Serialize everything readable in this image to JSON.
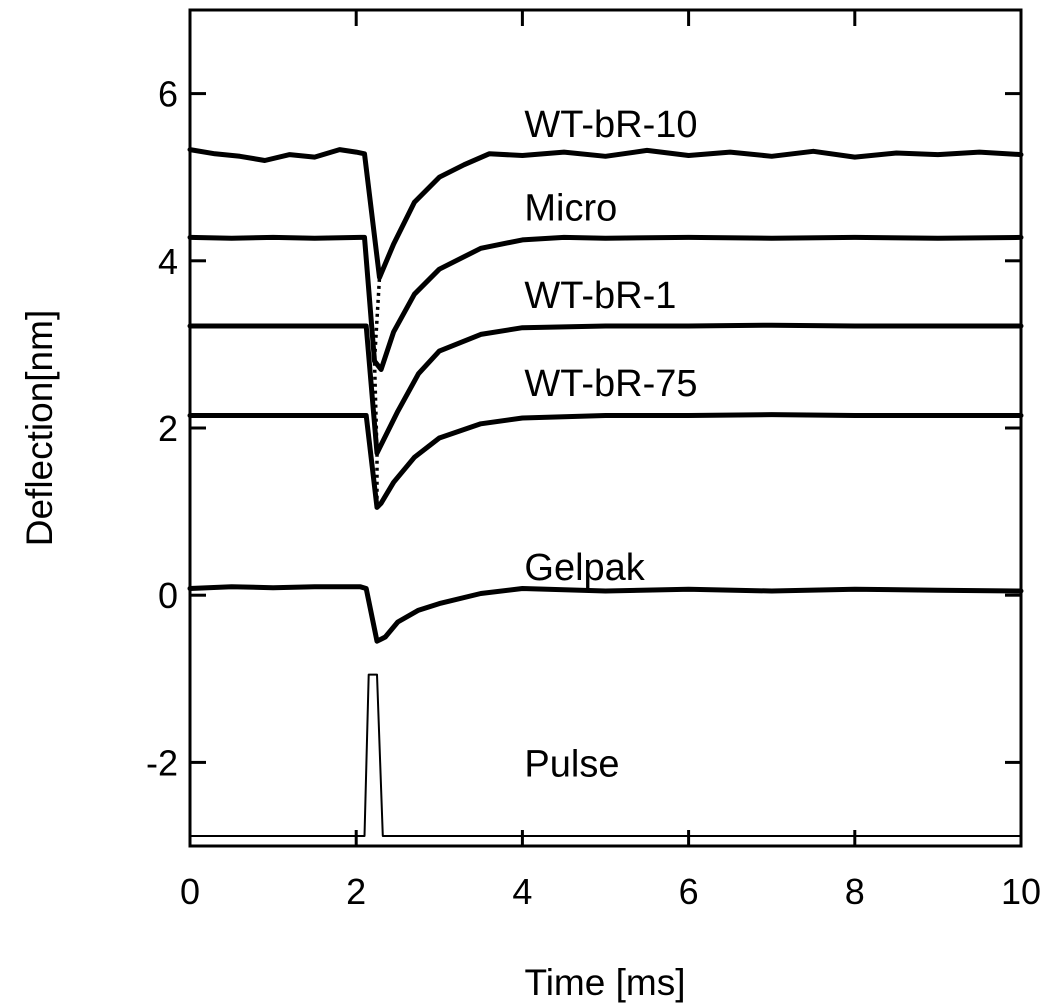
{
  "chart_data": {
    "type": "line",
    "xlabel": "Time [ms]",
    "ylabel": "Deflection[nm]",
    "xlim": [
      0,
      10
    ],
    "ylim": [
      -3.0,
      7.0
    ],
    "xticks": [
      0,
      2,
      4,
      6,
      8,
      10
    ],
    "yticks": [
      -2,
      0,
      2,
      4,
      6
    ],
    "xtick_labels": [
      "0",
      "2",
      "4",
      "6",
      "8",
      "10"
    ],
    "ytick_labels": [
      "-2",
      "0",
      "2",
      "4",
      "6"
    ],
    "grid": false,
    "legend": "none",
    "line_color": "#000000",
    "series": [
      {
        "name": "WT-bR-10",
        "label_at": [
          4.0,
          5.65
        ],
        "points": [
          [
            0,
            5.33
          ],
          [
            0.3,
            5.28
          ],
          [
            0.6,
            5.25
          ],
          [
            0.9,
            5.2
          ],
          [
            1.2,
            5.27
          ],
          [
            1.5,
            5.24
          ],
          [
            1.8,
            5.33
          ],
          [
            2.0,
            5.3
          ],
          [
            2.1,
            5.28
          ],
          [
            2.28,
            3.8
          ],
          [
            2.45,
            4.2
          ],
          [
            2.7,
            4.7
          ],
          [
            3.0,
            5.0
          ],
          [
            3.3,
            5.15
          ],
          [
            3.6,
            5.28
          ],
          [
            4.0,
            5.26
          ],
          [
            4.5,
            5.3
          ],
          [
            5.0,
            5.25
          ],
          [
            5.5,
            5.32
          ],
          [
            6.0,
            5.26
          ],
          [
            6.5,
            5.3
          ],
          [
            7.0,
            5.25
          ],
          [
            7.5,
            5.31
          ],
          [
            8.0,
            5.24
          ],
          [
            8.5,
            5.29
          ],
          [
            9.0,
            5.27
          ],
          [
            9.5,
            5.3
          ],
          [
            10.0,
            5.27
          ]
        ]
      },
      {
        "name": "Micro",
        "label_at": [
          4.0,
          4.65
        ],
        "points": [
          [
            0,
            4.28
          ],
          [
            0.5,
            4.27
          ],
          [
            1.0,
            4.28
          ],
          [
            1.5,
            4.27
          ],
          [
            2.05,
            4.28
          ],
          [
            2.1,
            4.28
          ],
          [
            2.22,
            2.8
          ],
          [
            2.3,
            2.7
          ],
          [
            2.45,
            3.15
          ],
          [
            2.7,
            3.6
          ],
          [
            3.0,
            3.9
          ],
          [
            3.5,
            4.15
          ],
          [
            4.0,
            4.25
          ],
          [
            4.5,
            4.28
          ],
          [
            5.0,
            4.27
          ],
          [
            6.0,
            4.28
          ],
          [
            7.0,
            4.27
          ],
          [
            8.0,
            4.28
          ],
          [
            9.0,
            4.27
          ],
          [
            10.0,
            4.28
          ]
        ]
      },
      {
        "name": "WT-bR-1",
        "label_at": [
          4.0,
          3.6
        ],
        "points": [
          [
            0,
            3.22
          ],
          [
            0.5,
            3.22
          ],
          [
            1.0,
            3.22
          ],
          [
            1.5,
            3.22
          ],
          [
            2.05,
            3.22
          ],
          [
            2.12,
            3.22
          ],
          [
            2.25,
            1.7
          ],
          [
            2.35,
            1.9
          ],
          [
            2.5,
            2.2
          ],
          [
            2.75,
            2.65
          ],
          [
            3.0,
            2.92
          ],
          [
            3.5,
            3.12
          ],
          [
            4.0,
            3.2
          ],
          [
            5.0,
            3.22
          ],
          [
            6.0,
            3.22
          ],
          [
            7.0,
            3.23
          ],
          [
            8.0,
            3.22
          ],
          [
            9.0,
            3.22
          ],
          [
            10.0,
            3.22
          ]
        ]
      },
      {
        "name": "WT-bR-75",
        "label_at": [
          4.0,
          2.55
        ],
        "points": [
          [
            0,
            2.15
          ],
          [
            0.5,
            2.15
          ],
          [
            1.0,
            2.15
          ],
          [
            1.5,
            2.15
          ],
          [
            2.05,
            2.15
          ],
          [
            2.12,
            2.15
          ],
          [
            2.25,
            1.05
          ],
          [
            2.3,
            1.1
          ],
          [
            2.45,
            1.35
          ],
          [
            2.7,
            1.65
          ],
          [
            3.0,
            1.88
          ],
          [
            3.5,
            2.05
          ],
          [
            4.0,
            2.12
          ],
          [
            5.0,
            2.15
          ],
          [
            6.0,
            2.15
          ],
          [
            7.0,
            2.16
          ],
          [
            8.0,
            2.15
          ],
          [
            9.0,
            2.15
          ],
          [
            10.0,
            2.15
          ]
        ]
      },
      {
        "name": "Gelpak",
        "label_at": [
          4.0,
          0.35
        ],
        "points": [
          [
            0,
            0.08
          ],
          [
            0.5,
            0.1
          ],
          [
            1.0,
            0.09
          ],
          [
            1.5,
            0.1
          ],
          [
            2.05,
            0.1
          ],
          [
            2.12,
            0.08
          ],
          [
            2.25,
            -0.55
          ],
          [
            2.35,
            -0.5
          ],
          [
            2.5,
            -0.32
          ],
          [
            2.75,
            -0.18
          ],
          [
            3.0,
            -0.1
          ],
          [
            3.5,
            0.02
          ],
          [
            4.0,
            0.08
          ],
          [
            5.0,
            0.05
          ],
          [
            6.0,
            0.07
          ],
          [
            7.0,
            0.05
          ],
          [
            8.0,
            0.07
          ],
          [
            9.0,
            0.06
          ],
          [
            10.0,
            0.05
          ]
        ]
      },
      {
        "name": "Pulse",
        "label_at": [
          4.0,
          -2.0
        ],
        "points": [
          [
            0,
            -2.88
          ],
          [
            2.1,
            -2.88
          ],
          [
            2.15,
            -0.95
          ],
          [
            2.25,
            -0.95
          ],
          [
            2.32,
            -2.88
          ],
          [
            10.0,
            -2.88
          ]
        ]
      }
    ],
    "connectors": [
      {
        "from": "WT-bR-10",
        "points": [
          [
            2.1,
            5.28
          ],
          [
            2.28,
            3.8
          ],
          [
            2.22,
            2.8
          ],
          [
            2.25,
            1.7
          ],
          [
            2.25,
            1.05
          ]
        ]
      }
    ]
  }
}
